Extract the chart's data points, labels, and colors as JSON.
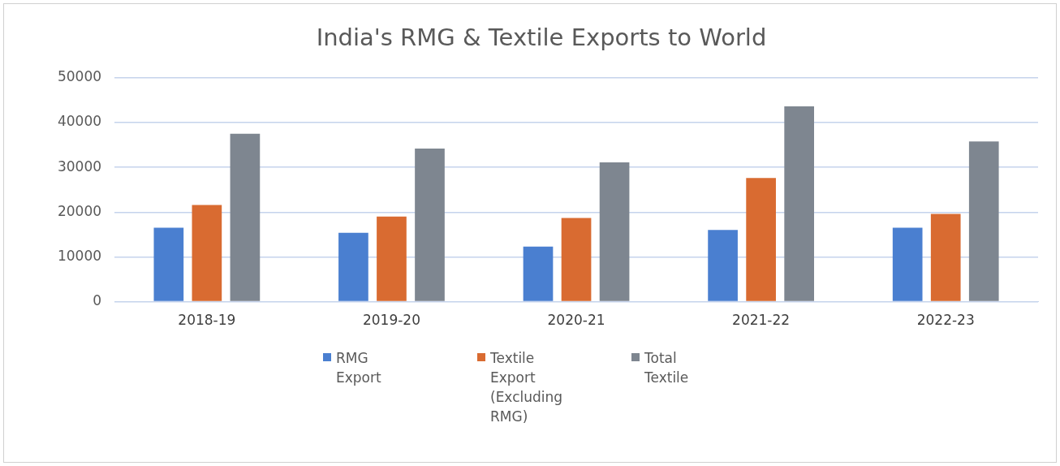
{
  "chart_data": {
    "type": "bar",
    "title": "India's RMG & Textile Exports to World",
    "categories": [
      "2018-19",
      "2019-20",
      "2020-21",
      "2021-22",
      "2022-23"
    ],
    "series": [
      {
        "name": "RMG Export",
        "color": "#4a7fd0",
        "values": [
          16500,
          15400,
          12300,
          16000,
          16500
        ]
      },
      {
        "name": "Textile Export (Excluding RMG)",
        "color": "#d96b31",
        "values": [
          21600,
          19000,
          18700,
          27600,
          19600
        ]
      },
      {
        "name": "Total Textile",
        "color": "#7e8690",
        "values": [
          37500,
          34200,
          31100,
          43600,
          35800
        ]
      }
    ],
    "ylim": [
      0,
      50000
    ],
    "yticks": [
      0,
      10000,
      20000,
      30000,
      40000,
      50000
    ],
    "grid": "y",
    "legend": "bottom"
  }
}
